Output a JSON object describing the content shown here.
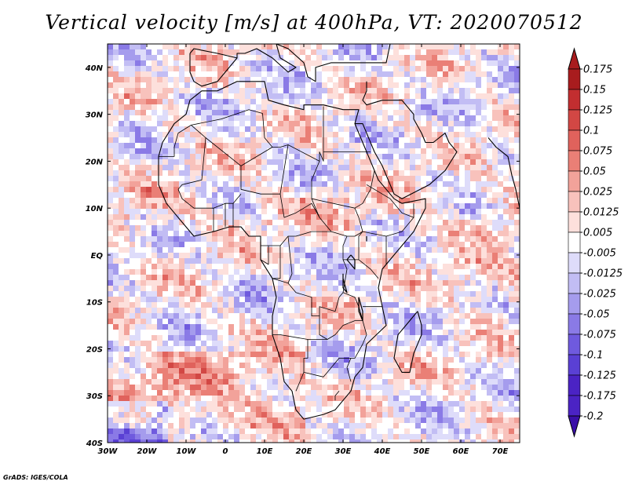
{
  "title": "Vertical velocity [m/s] at 400hPa, VT: 2020070512",
  "credit": "GrADS: IGES/COLA",
  "map": {
    "lon_range": [
      -30,
      75
    ],
    "lat_range": [
      -40,
      45
    ],
    "lat_ticks": [
      {
        "value": 40,
        "label": "40N"
      },
      {
        "value": 30,
        "label": "30N"
      },
      {
        "value": 20,
        "label": "20N"
      },
      {
        "value": 10,
        "label": "10N"
      },
      {
        "value": 0,
        "label": "EQ"
      },
      {
        "value": -10,
        "label": "10S"
      },
      {
        "value": -20,
        "label": "20S"
      },
      {
        "value": -30,
        "label": "30S"
      },
      {
        "value": -40,
        "label": "40S"
      }
    ],
    "lon_ticks": [
      {
        "value": -30,
        "label": "30W"
      },
      {
        "value": -20,
        "label": "20W"
      },
      {
        "value": -10,
        "label": "10W"
      },
      {
        "value": 0,
        "label": "0"
      },
      {
        "value": 10,
        "label": "10E"
      },
      {
        "value": 20,
        "label": "20E"
      },
      {
        "value": 30,
        "label": "30E"
      },
      {
        "value": 40,
        "label": "40E"
      },
      {
        "value": 50,
        "label": "50E"
      },
      {
        "value": 60,
        "label": "60E"
      },
      {
        "value": 70,
        "label": "70E"
      }
    ],
    "land_outline": [
      [
        -17,
        21
      ],
      [
        -16,
        24
      ],
      [
        -13,
        28
      ],
      [
        -10,
        30
      ],
      [
        -9,
        33
      ],
      [
        -6,
        35
      ],
      [
        -2,
        35
      ],
      [
        3,
        37
      ],
      [
        10,
        37
      ],
      [
        11,
        33
      ],
      [
        15,
        32
      ],
      [
        20,
        31
      ],
      [
        20,
        32
      ],
      [
        25,
        32
      ],
      [
        30,
        31
      ],
      [
        32,
        31
      ],
      [
        34,
        31
      ],
      [
        33,
        28
      ],
      [
        35,
        24
      ],
      [
        37,
        20
      ],
      [
        39,
        16
      ],
      [
        43,
        12
      ],
      [
        45,
        11
      ],
      [
        51,
        12
      ],
      [
        51,
        10
      ],
      [
        48,
        5
      ],
      [
        43,
        0
      ],
      [
        40,
        -3
      ],
      [
        39,
        -7
      ],
      [
        40,
        -11
      ],
      [
        41,
        -15
      ],
      [
        36,
        -19
      ],
      [
        35,
        -24
      ],
      [
        33,
        -26
      ],
      [
        32,
        -29
      ],
      [
        30,
        -31
      ],
      [
        28,
        -33
      ],
      [
        25,
        -34
      ],
      [
        20,
        -35
      ],
      [
        18,
        -33
      ],
      [
        17,
        -29
      ],
      [
        15,
        -27
      ],
      [
        14,
        -22
      ],
      [
        12,
        -17
      ],
      [
        12,
        -13
      ],
      [
        13,
        -9
      ],
      [
        12,
        -5
      ],
      [
        9,
        -1
      ],
      [
        9,
        4
      ],
      [
        6,
        4
      ],
      [
        4,
        6
      ],
      [
        1,
        6
      ],
      [
        -3,
        5
      ],
      [
        -8,
        4
      ],
      [
        -11,
        7
      ],
      [
        -13,
        9
      ],
      [
        -15,
        11
      ],
      [
        -17,
        15
      ],
      [
        -17,
        21
      ]
    ],
    "madagascar_outline": [
      [
        49,
        -12
      ],
      [
        50,
        -15
      ],
      [
        50,
        -17
      ],
      [
        48,
        -21
      ],
      [
        47,
        -25
      ],
      [
        45,
        -25
      ],
      [
        43,
        -22
      ],
      [
        44,
        -17
      ],
      [
        46,
        -15
      ],
      [
        48,
        -13
      ],
      [
        49,
        -12
      ]
    ],
    "arabia_outline": [
      [
        33,
        28
      ],
      [
        35,
        28
      ],
      [
        36,
        26
      ],
      [
        38,
        22
      ],
      [
        40,
        19
      ],
      [
        43,
        13
      ],
      [
        45,
        12
      ],
      [
        52,
        15
      ],
      [
        56,
        18
      ],
      [
        59,
        22
      ],
      [
        57,
        24
      ],
      [
        56,
        26
      ],
      [
        53,
        24
      ],
      [
        51,
        24
      ],
      [
        50,
        26
      ],
      [
        48,
        29
      ],
      [
        48,
        30
      ],
      [
        47,
        31
      ],
      [
        45,
        33
      ],
      [
        40,
        33
      ],
      [
        36,
        32
      ],
      [
        35,
        33
      ],
      [
        36,
        35
      ],
      [
        36,
        37
      ]
    ],
    "europe_coast": [
      [
        -9,
        43
      ],
      [
        -8,
        44
      ],
      [
        -2,
        43
      ],
      [
        3,
        42
      ],
      [
        3,
        43
      ],
      [
        5,
        43
      ],
      [
        8,
        44
      ],
      [
        12,
        42
      ],
      [
        16,
        39
      ],
      [
        18,
        40
      ],
      [
        14,
        42
      ],
      [
        13,
        45
      ],
      [
        16,
        44
      ],
      [
        20,
        41
      ],
      [
        21,
        38
      ],
      [
        23,
        37
      ],
      [
        23,
        40
      ],
      [
        27,
        41
      ],
      [
        29,
        41
      ],
      [
        36,
        41
      ],
      [
        41,
        41
      ],
      [
        42,
        45
      ]
    ],
    "iberia_south": [
      [
        -9,
        43
      ],
      [
        -9,
        39
      ],
      [
        -8,
        37
      ],
      [
        -6,
        36
      ],
      [
        -2,
        37
      ],
      [
        0,
        39
      ],
      [
        3,
        42
      ]
    ],
    "india_coast": [
      [
        67,
        25
      ],
      [
        69,
        23
      ],
      [
        72,
        21
      ],
      [
        73,
        17
      ],
      [
        74,
        14
      ],
      [
        75,
        10
      ]
    ],
    "borders": [
      [
        [
          -8.7,
          27.7
        ],
        [
          -1,
          29
        ],
        [
          6,
          31
        ],
        [
          9.5,
          30.2
        ]
      ],
      [
        [
          9.5,
          30.2
        ],
        [
          10,
          25
        ],
        [
          12,
          23
        ],
        [
          14,
          23
        ],
        [
          16,
          23.5
        ],
        [
          24,
          20
        ],
        [
          24,
          22
        ],
        [
          25,
          20
        ],
        [
          25,
          22
        ]
      ],
      [
        [
          25,
          22
        ],
        [
          37,
          22
        ]
      ],
      [
        [
          25,
          22
        ],
        [
          25,
          31.7
        ]
      ],
      [
        [
          -17,
          21
        ],
        [
          -13,
          21
        ],
        [
          -13,
          23
        ],
        [
          -12,
          26
        ],
        [
          -8.7,
          27.7
        ]
      ],
      [
        [
          -8.7,
          27.7
        ],
        [
          -5,
          25
        ],
        [
          -6,
          16
        ],
        [
          -11,
          15
        ],
        [
          -12,
          14
        ]
      ],
      [
        [
          -5,
          25
        ],
        [
          1,
          21
        ],
        [
          4,
          19
        ],
        [
          12,
          23
        ]
      ],
      [
        [
          4,
          19
        ],
        [
          4,
          14
        ],
        [
          9,
          13
        ],
        [
          14,
          13
        ],
        [
          16,
          23.5
        ]
      ],
      [
        [
          14,
          13
        ],
        [
          15,
          8
        ],
        [
          18,
          9
        ],
        [
          22,
          11
        ],
        [
          24,
          8
        ],
        [
          27,
          5
        ],
        [
          31,
          4
        ]
      ],
      [
        [
          24,
          20
        ],
        [
          22,
          16
        ],
        [
          22,
          12
        ],
        [
          24,
          8
        ]
      ],
      [
        [
          22,
          12
        ],
        [
          33,
          10
        ],
        [
          35,
          11
        ],
        [
          37,
          14
        ],
        [
          38,
          18
        ]
      ],
      [
        [
          33,
          10
        ],
        [
          34,
          8
        ],
        [
          35,
          5
        ],
        [
          33,
          4
        ],
        [
          31,
          4
        ]
      ],
      [
        [
          35,
          5
        ],
        [
          41,
          4
        ],
        [
          45,
          5
        ],
        [
          48,
          8
        ],
        [
          48,
          11
        ]
      ],
      [
        [
          42,
          12
        ],
        [
          43,
          11
        ],
        [
          45,
          9
        ],
        [
          48,
          8
        ]
      ],
      [
        [
          36,
          15
        ],
        [
          42,
          12
        ]
      ],
      [
        [
          -12,
          14
        ],
        [
          -11,
          12
        ],
        [
          -8,
          10
        ],
        [
          -5,
          10
        ],
        [
          -3,
          10
        ],
        [
          0,
          11
        ],
        [
          2,
          11
        ],
        [
          4,
          13
        ]
      ],
      [
        [
          -3,
          10
        ],
        [
          -3,
          5
        ]
      ],
      [
        [
          0,
          11
        ],
        [
          0,
          6
        ]
      ],
      [
        [
          2,
          11
        ],
        [
          2,
          6
        ]
      ],
      [
        [
          9,
          4
        ],
        [
          9,
          2
        ],
        [
          11,
          2
        ],
        [
          14,
          2
        ],
        [
          16,
          4
        ],
        [
          18,
          4
        ],
        [
          22,
          5
        ],
        [
          27,
          5
        ]
      ],
      [
        [
          11,
          2
        ],
        [
          11,
          -2
        ],
        [
          9,
          -1
        ]
      ],
      [
        [
          14,
          2
        ],
        [
          14,
          -5
        ],
        [
          12,
          -5
        ]
      ],
      [
        [
          16,
          4
        ],
        [
          17,
          -4
        ],
        [
          16,
          -6
        ]
      ],
      [
        [
          12,
          -5
        ],
        [
          16,
          -6
        ],
        [
          18,
          -8
        ],
        [
          22,
          -9
        ],
        [
          22,
          -13
        ],
        [
          24,
          -13
        ],
        [
          24,
          -11
        ],
        [
          28,
          -12
        ],
        [
          29,
          -9
        ],
        [
          30,
          -8
        ]
      ],
      [
        [
          30,
          -8
        ],
        [
          31,
          -3
        ],
        [
          30,
          -1
        ],
        [
          33,
          -1
        ],
        [
          34,
          -1
        ],
        [
          37,
          -3
        ],
        [
          39,
          -5
        ]
      ],
      [
        [
          30,
          -1
        ],
        [
          30,
          2
        ],
        [
          31,
          4
        ]
      ],
      [
        [
          34,
          -1
        ],
        [
          34,
          4
        ],
        [
          35,
          5
        ]
      ],
      [
        [
          41,
          -2
        ],
        [
          41,
          4
        ]
      ],
      [
        [
          30,
          -8
        ],
        [
          33,
          -9
        ],
        [
          34,
          -11
        ],
        [
          35,
          -14
        ],
        [
          33,
          -14
        ],
        [
          30,
          -15
        ],
        [
          28,
          -17
        ],
        [
          26,
          -18
        ],
        [
          25,
          -18
        ],
        [
          21,
          -18
        ],
        [
          21,
          -22
        ],
        [
          20,
          -22
        ],
        [
          20,
          -25
        ],
        [
          18,
          -29
        ]
      ],
      [
        [
          12,
          -17
        ],
        [
          14,
          -17
        ],
        [
          21,
          -18
        ]
      ],
      [
        [
          24,
          -13
        ],
        [
          24,
          -17
        ],
        [
          26,
          -18
        ]
      ],
      [
        [
          34,
          -11
        ],
        [
          35,
          -14
        ],
        [
          36,
          -17
        ],
        [
          35,
          -19
        ],
        [
          33,
          -22
        ],
        [
          32,
          -22
        ],
        [
          31,
          -24
        ],
        [
          32,
          -27
        ]
      ],
      [
        [
          32,
          -22
        ],
        [
          29,
          -22
        ],
        [
          26,
          -25
        ],
        [
          25,
          -26
        ],
        [
          20,
          -25
        ]
      ],
      [
        [
          40,
          -11
        ],
        [
          38,
          -11
        ],
        [
          35,
          -11
        ]
      ],
      [
        [
          29,
          -29
        ],
        [
          28,
          -30
        ],
        [
          28,
          -31
        ]
      ]
    ],
    "lakes": [
      [
        [
          32,
          0
        ],
        [
          33,
          -1
        ],
        [
          33,
          -3
        ],
        [
          32,
          -2
        ],
        [
          31,
          -1
        ],
        [
          32,
          0
        ]
      ],
      [
        [
          30,
          -4
        ],
        [
          30,
          -7
        ],
        [
          31,
          -8
        ],
        [
          30,
          -5
        ],
        [
          30,
          -4
        ]
      ],
      [
        [
          34,
          -9
        ],
        [
          34,
          -12
        ],
        [
          35,
          -14
        ],
        [
          35,
          -12
        ],
        [
          34,
          -9
        ]
      ],
      [
        [
          36,
          4
        ],
        [
          36,
          3
        ],
        [
          36,
          4
        ]
      ]
    ],
    "field": {
      "palette": [
        "#3a0fa8",
        "#4b23c4",
        "#5a40d4",
        "#6f5ade",
        "#8a7ae6",
        "#a59ced",
        "#c2bdf4",
        "#dedcfa",
        "#ffffff",
        "#fde0dc",
        "#f8c2bc",
        "#f2a29a",
        "#ea7f76",
        "#e0625c",
        "#d24744",
        "#c22e30",
        "#a81c1e"
      ],
      "levels": [
        -0.2,
        -0.175,
        -0.125,
        -0.1,
        -0.075,
        -0.05,
        -0.025,
        -0.0125,
        -0.005,
        0.005,
        0.0125,
        0.025,
        0.05,
        0.075,
        0.1,
        0.125,
        0.15,
        0.175
      ]
    }
  },
  "colorbar": {
    "labels": [
      "0.175",
      "0.15",
      "0.125",
      "0.1",
      "0.075",
      "0.05",
      "0.025",
      "0.0125",
      "0.005",
      "-0.005",
      "-0.0125",
      "-0.025",
      "-0.05",
      "-0.075",
      "-0.1",
      "-0.125",
      "-0.175",
      "-0.2"
    ],
    "colors": [
      "#a81c1e",
      "#c22e30",
      "#d24744",
      "#e0625c",
      "#ea7f76",
      "#f2a29a",
      "#f8c2bc",
      "#fde0dc",
      "#ffffff",
      "#dedcfa",
      "#c2bdf4",
      "#a59ced",
      "#8a7ae6",
      "#6f5ade",
      "#5a40d4",
      "#4b23c4",
      "#3a0fa8"
    ]
  }
}
